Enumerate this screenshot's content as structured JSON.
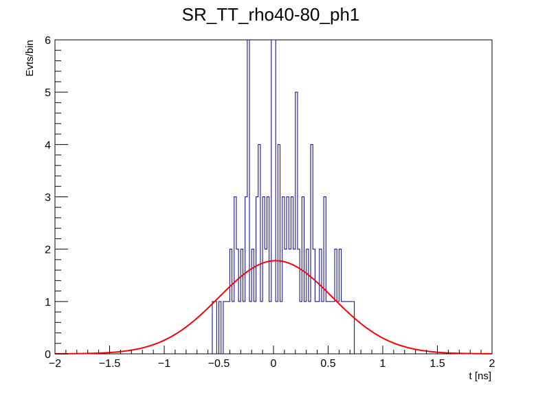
{
  "chart_data": {
    "type": "histogram",
    "title": "SR_TT_rho40-80_ph1",
    "xlabel": "t [ns]",
    "ylabel": "Evts/bin",
    "xlim": [
      -2,
      2
    ],
    "ylim": [
      0,
      6
    ],
    "x_ticks": [
      -2,
      -1.5,
      -1,
      -0.5,
      0,
      0.5,
      1,
      1.5,
      2
    ],
    "x_tick_labels": [
      "−2",
      "−1.5",
      "−1",
      "−0.5",
      "0",
      "0.5",
      "1",
      "1.5",
      "2"
    ],
    "y_ticks": [
      0,
      1,
      2,
      3,
      4,
      5,
      6
    ],
    "y_tick_labels": [
      "0",
      "1",
      "2",
      "3",
      "4",
      "5",
      "6"
    ],
    "grid": false,
    "legend": "none",
    "bin_width": 0.02,
    "series": [
      {
        "kind": "histogram",
        "color": "#000080",
        "bins": [
          {
            "x": -0.56,
            "count": 1
          },
          {
            "x": -0.54,
            "count": 1
          },
          {
            "x": -0.52,
            "count": 0
          },
          {
            "x": -0.5,
            "count": 1
          },
          {
            "x": -0.48,
            "count": 0
          },
          {
            "x": -0.46,
            "count": 1
          },
          {
            "x": -0.44,
            "count": 1
          },
          {
            "x": -0.42,
            "count": 1
          },
          {
            "x": -0.4,
            "count": 2
          },
          {
            "x": -0.38,
            "count": 1
          },
          {
            "x": -0.36,
            "count": 3
          },
          {
            "x": -0.34,
            "count": 2
          },
          {
            "x": -0.32,
            "count": 1
          },
          {
            "x": -0.3,
            "count": 2
          },
          {
            "x": -0.28,
            "count": 1
          },
          {
            "x": -0.26,
            "count": 3
          },
          {
            "x": -0.24,
            "count": 6
          },
          {
            "x": -0.22,
            "count": 1
          },
          {
            "x": -0.2,
            "count": 2
          },
          {
            "x": -0.18,
            "count": 1
          },
          {
            "x": -0.16,
            "count": 3
          },
          {
            "x": -0.14,
            "count": 4
          },
          {
            "x": -0.12,
            "count": 1
          },
          {
            "x": -0.1,
            "count": 3
          },
          {
            "x": -0.08,
            "count": 2
          },
          {
            "x": -0.06,
            "count": 3
          },
          {
            "x": -0.04,
            "count": 1
          },
          {
            "x": -0.02,
            "count": 6
          },
          {
            "x": 0.0,
            "count": 6
          },
          {
            "x": 0.02,
            "count": 1
          },
          {
            "x": 0.04,
            "count": 4
          },
          {
            "x": 0.06,
            "count": 1
          },
          {
            "x": 0.08,
            "count": 3
          },
          {
            "x": 0.1,
            "count": 2
          },
          {
            "x": 0.12,
            "count": 3
          },
          {
            "x": 0.14,
            "count": 2
          },
          {
            "x": 0.16,
            "count": 3
          },
          {
            "x": 0.18,
            "count": 2
          },
          {
            "x": 0.2,
            "count": 5
          },
          {
            "x": 0.22,
            "count": 2
          },
          {
            "x": 0.24,
            "count": 1
          },
          {
            "x": 0.26,
            "count": 3
          },
          {
            "x": 0.28,
            "count": 1
          },
          {
            "x": 0.3,
            "count": 2
          },
          {
            "x": 0.32,
            "count": 1
          },
          {
            "x": 0.34,
            "count": 4
          },
          {
            "x": 0.36,
            "count": 2
          },
          {
            "x": 0.38,
            "count": 1
          },
          {
            "x": 0.4,
            "count": 1
          },
          {
            "x": 0.42,
            "count": 2
          },
          {
            "x": 0.44,
            "count": 1
          },
          {
            "x": 0.46,
            "count": 3
          },
          {
            "x": 0.48,
            "count": 1
          },
          {
            "x": 0.5,
            "count": 1
          },
          {
            "x": 0.52,
            "count": 1
          },
          {
            "x": 0.54,
            "count": 1
          },
          {
            "x": 0.56,
            "count": 2
          },
          {
            "x": 0.58,
            "count": 1
          },
          {
            "x": 0.6,
            "count": 2
          },
          {
            "x": 0.62,
            "count": 1
          },
          {
            "x": 0.64,
            "count": 1
          },
          {
            "x": 0.66,
            "count": 1
          },
          {
            "x": 0.68,
            "count": 1
          },
          {
            "x": 0.7,
            "count": 1
          },
          {
            "x": 0.72,
            "count": 1
          }
        ]
      },
      {
        "kind": "gaussian-fit",
        "color": "#ff0000",
        "amplitude": 1.78,
        "mean": 0.02,
        "sigma": 0.52
      }
    ]
  }
}
